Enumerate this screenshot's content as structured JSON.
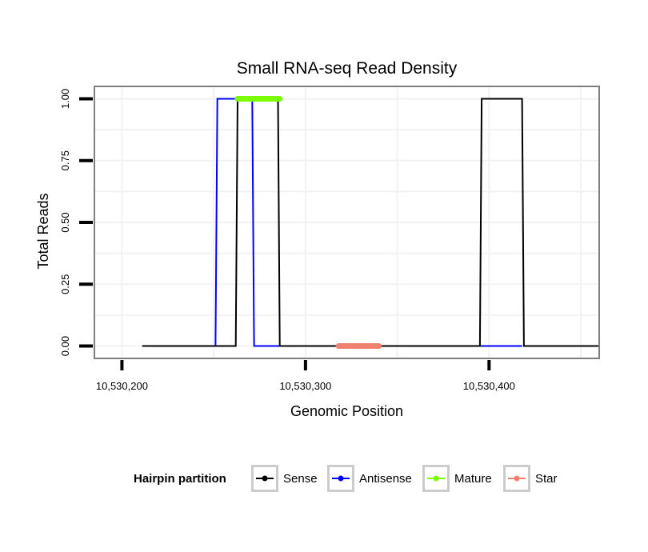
{
  "chart_data": {
    "type": "line",
    "title": "Small RNA-seq Read Density",
    "xlabel": "Genomic Position",
    "ylabel": "Total Reads",
    "xlim": [
      10530185,
      10530460
    ],
    "ylim": [
      -0.05,
      1.05
    ],
    "x_ticks": [
      10530200,
      10530300,
      10530400
    ],
    "x_tick_labels": [
      "10,530,200",
      "10,530,300",
      "10,530,400"
    ],
    "y_ticks": [
      0,
      0.25,
      0.5,
      0.75,
      1
    ],
    "y_tick_labels": [
      "0.00",
      "0.25",
      "0.50",
      "0.75",
      "1.00"
    ],
    "grid": true,
    "series": [
      {
        "name": "Sense",
        "color": "#000000",
        "x": [
          10530211,
          10530262,
          10530263,
          10530285,
          10530286,
          10530395,
          10530396,
          10530418,
          10530419,
          10530460
        ],
        "y": [
          0,
          0,
          1,
          1,
          0,
          0,
          1,
          1,
          0,
          0
        ]
      },
      {
        "name": "Antisense",
        "color": "#0000ff",
        "x": [
          10530251,
          10530252,
          10530271,
          10530272,
          10530418
        ],
        "y": [
          0,
          1,
          1,
          0,
          0
        ]
      }
    ],
    "segments": [
      {
        "name": "Mature",
        "color": "#7cfc00",
        "x_start": 10530263,
        "x_end": 10530286,
        "y": 1
      },
      {
        "name": "Star",
        "color": "#f08070",
        "x_start": 10530318,
        "x_end": 10530340,
        "y": 0
      }
    ],
    "legend": {
      "title": "Hairpin partition",
      "position": "bottom",
      "entries": [
        {
          "label": "Sense",
          "color": "#000000"
        },
        {
          "label": "Antisense",
          "color": "#0000ff"
        },
        {
          "label": "Mature",
          "color": "#7cfc00"
        },
        {
          "label": "Star",
          "color": "#f08070"
        }
      ]
    }
  }
}
